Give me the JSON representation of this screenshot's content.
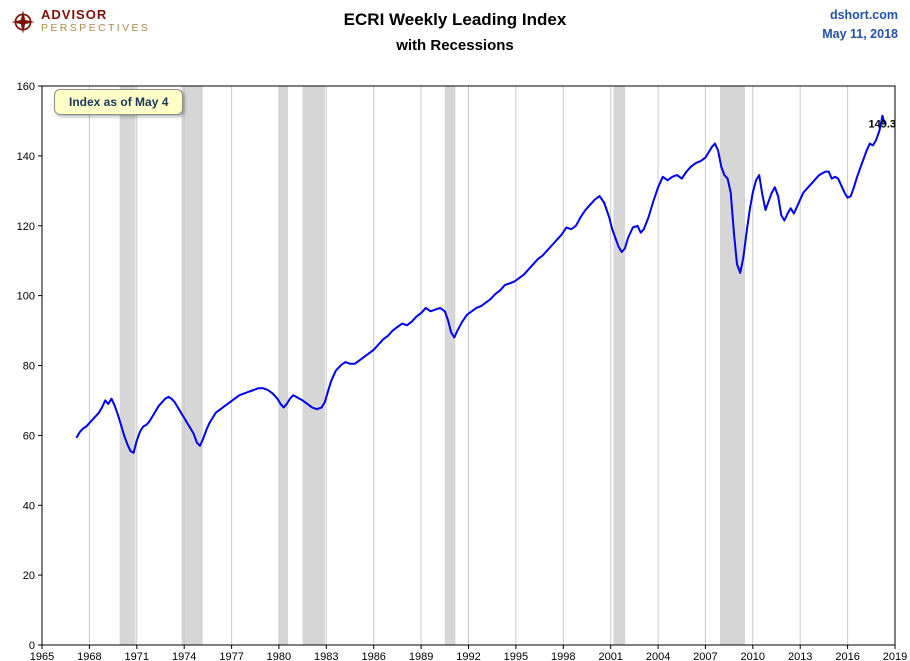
{
  "header": {
    "logo_line1": "ADVISOR",
    "logo_line2": "PERSPECTIVES",
    "title_line1": "ECRI Weekly Leading Index",
    "title_line2": "with Recessions",
    "source": "dshort.com",
    "date": "May 11, 2018"
  },
  "annotation": {
    "label": "Index as of May 4"
  },
  "colors": {
    "line": "#0000EE",
    "recession_band": "#D6D6D6",
    "gridline": "#C9C9C9",
    "plot_border": "#000000",
    "annotation_bg": "#FFFFC8",
    "annotation_text": "#17375E",
    "header_accent": "#2353A4",
    "logo_red": "#7E120B",
    "logo_gold": "#A98B4F",
    "last_value": "#F9A800"
  },
  "chart_data": {
    "type": "line",
    "title": "ECRI Weekly Leading Index with Recessions",
    "xlabel": "",
    "ylabel": "",
    "xlim": [
      1965,
      2019
    ],
    "ylim": [
      0,
      160
    ],
    "x_ticks": [
      1965,
      1968,
      1971,
      1974,
      1977,
      1980,
      1983,
      1986,
      1989,
      1992,
      1995,
      1998,
      2001,
      2004,
      2007,
      2010,
      2013,
      2016,
      2019
    ],
    "y_ticks": [
      0,
      20,
      40,
      60,
      80,
      100,
      120,
      140,
      160
    ],
    "grid": "vertical-only",
    "legend_position": "none",
    "last_value": 149.3,
    "last_value_label": "149.3",
    "recessions": [
      [
        1969.92,
        1970.92
      ],
      [
        1973.83,
        1975.17
      ],
      [
        1980.0,
        1980.58
      ],
      [
        1981.5,
        1982.92
      ],
      [
        1990.5,
        1991.17
      ],
      [
        2001.17,
        2001.92
      ],
      [
        2007.92,
        2009.5
      ]
    ],
    "series": [
      {
        "name": "ECRI Weekly Leading Index",
        "color": "#0000EE",
        "points": [
          [
            1967.2,
            59.5
          ],
          [
            1967.4,
            61
          ],
          [
            1967.6,
            62
          ],
          [
            1967.8,
            62.5
          ],
          [
            1968.0,
            63.5
          ],
          [
            1968.2,
            64.5
          ],
          [
            1968.4,
            65.5
          ],
          [
            1968.6,
            66.5
          ],
          [
            1968.8,
            68
          ],
          [
            1969.0,
            70
          ],
          [
            1969.2,
            69
          ],
          [
            1969.4,
            70.5
          ],
          [
            1969.6,
            68.5
          ],
          [
            1969.8,
            66
          ],
          [
            1970.0,
            63
          ],
          [
            1970.2,
            60
          ],
          [
            1970.4,
            57.5
          ],
          [
            1970.6,
            55.5
          ],
          [
            1970.8,
            55
          ],
          [
            1971.0,
            58.5
          ],
          [
            1971.2,
            61
          ],
          [
            1971.4,
            62.5
          ],
          [
            1971.6,
            63
          ],
          [
            1971.8,
            64
          ],
          [
            1972.0,
            65.5
          ],
          [
            1972.2,
            67
          ],
          [
            1972.4,
            68.5
          ],
          [
            1972.6,
            69.5
          ],
          [
            1972.8,
            70.5
          ],
          [
            1973.0,
            71
          ],
          [
            1973.2,
            70.5
          ],
          [
            1973.4,
            69.5
          ],
          [
            1973.6,
            68
          ],
          [
            1973.8,
            66.5
          ],
          [
            1974.0,
            65
          ],
          [
            1974.2,
            63.5
          ],
          [
            1974.4,
            62
          ],
          [
            1974.6,
            60.5
          ],
          [
            1974.8,
            58
          ],
          [
            1975.0,
            57
          ],
          [
            1975.2,
            59
          ],
          [
            1975.4,
            61.5
          ],
          [
            1975.6,
            63.5
          ],
          [
            1975.8,
            65
          ],
          [
            1976.0,
            66.5
          ],
          [
            1976.3,
            67.5
          ],
          [
            1976.6,
            68.5
          ],
          [
            1976.9,
            69.5
          ],
          [
            1977.2,
            70.5
          ],
          [
            1977.5,
            71.5
          ],
          [
            1977.8,
            72
          ],
          [
            1978.1,
            72.5
          ],
          [
            1978.4,
            73
          ],
          [
            1978.7,
            73.5
          ],
          [
            1979.0,
            73.5
          ],
          [
            1979.3,
            73
          ],
          [
            1979.6,
            72
          ],
          [
            1979.9,
            70.5
          ],
          [
            1980.1,
            69
          ],
          [
            1980.3,
            68
          ],
          [
            1980.5,
            69
          ],
          [
            1980.7,
            70.5
          ],
          [
            1980.9,
            71.5
          ],
          [
            1981.1,
            71
          ],
          [
            1981.3,
            70.5
          ],
          [
            1981.5,
            70
          ],
          [
            1981.8,
            69
          ],
          [
            1982.1,
            68
          ],
          [
            1982.4,
            67.5
          ],
          [
            1982.7,
            68
          ],
          [
            1982.9,
            69.5
          ],
          [
            1983.1,
            72.5
          ],
          [
            1983.3,
            75.5
          ],
          [
            1983.6,
            78.5
          ],
          [
            1983.9,
            80
          ],
          [
            1984.2,
            81
          ],
          [
            1984.5,
            80.5
          ],
          [
            1984.8,
            80.5
          ],
          [
            1985.1,
            81.5
          ],
          [
            1985.4,
            82.5
          ],
          [
            1985.7,
            83.5
          ],
          [
            1986.0,
            84.5
          ],
          [
            1986.3,
            86
          ],
          [
            1986.6,
            87.5
          ],
          [
            1986.9,
            88.5
          ],
          [
            1987.2,
            90
          ],
          [
            1987.5,
            91
          ],
          [
            1987.8,
            92
          ],
          [
            1988.1,
            91.5
          ],
          [
            1988.4,
            92.5
          ],
          [
            1988.7,
            94
          ],
          [
            1989.0,
            95
          ],
          [
            1989.3,
            96.5
          ],
          [
            1989.6,
            95.5
          ],
          [
            1989.9,
            96
          ],
          [
            1990.2,
            96.5
          ],
          [
            1990.5,
            95.5
          ],
          [
            1990.7,
            93
          ],
          [
            1990.9,
            89.5
          ],
          [
            1991.1,
            88
          ],
          [
            1991.3,
            90
          ],
          [
            1991.6,
            92.5
          ],
          [
            1991.9,
            94.5
          ],
          [
            1992.2,
            95.5
          ],
          [
            1992.5,
            96.5
          ],
          [
            1992.8,
            97
          ],
          [
            1993.1,
            98
          ],
          [
            1993.4,
            99
          ],
          [
            1993.7,
            100.5
          ],
          [
            1994.0,
            101.5
          ],
          [
            1994.3,
            103
          ],
          [
            1994.6,
            103.5
          ],
          [
            1994.9,
            104
          ],
          [
            1995.2,
            105
          ],
          [
            1995.5,
            106
          ],
          [
            1995.8,
            107.5
          ],
          [
            1996.1,
            109
          ],
          [
            1996.4,
            110.5
          ],
          [
            1996.7,
            111.5
          ],
          [
            1997.0,
            113
          ],
          [
            1997.3,
            114.5
          ],
          [
            1997.6,
            116
          ],
          [
            1997.9,
            117.5
          ],
          [
            1998.2,
            119.5
          ],
          [
            1998.5,
            119
          ],
          [
            1998.8,
            120
          ],
          [
            1999.1,
            122.5
          ],
          [
            1999.4,
            124.5
          ],
          [
            1999.7,
            126
          ],
          [
            2000.0,
            127.5
          ],
          [
            2000.3,
            128.5
          ],
          [
            2000.6,
            126.5
          ],
          [
            2000.9,
            122.5
          ],
          [
            2001.1,
            119
          ],
          [
            2001.3,
            116.5
          ],
          [
            2001.5,
            114
          ],
          [
            2001.7,
            112.5
          ],
          [
            2001.9,
            113.5
          ],
          [
            2002.1,
            116.5
          ],
          [
            2002.4,
            119.5
          ],
          [
            2002.7,
            120
          ],
          [
            2002.9,
            118
          ],
          [
            2003.1,
            119
          ],
          [
            2003.4,
            122.5
          ],
          [
            2003.7,
            127
          ],
          [
            2004.0,
            131
          ],
          [
            2004.3,
            134
          ],
          [
            2004.6,
            133
          ],
          [
            2004.9,
            134
          ],
          [
            2005.2,
            134.5
          ],
          [
            2005.5,
            133.5
          ],
          [
            2005.8,
            135.5
          ],
          [
            2006.1,
            137
          ],
          [
            2006.4,
            138
          ],
          [
            2006.7,
            138.5
          ],
          [
            2007.0,
            139.5
          ],
          [
            2007.2,
            141
          ],
          [
            2007.4,
            142.5
          ],
          [
            2007.6,
            143.5
          ],
          [
            2007.8,
            141.5
          ],
          [
            2008.0,
            137
          ],
          [
            2008.2,
            134.5
          ],
          [
            2008.4,
            133.5
          ],
          [
            2008.6,
            129.5
          ],
          [
            2008.8,
            118
          ],
          [
            2009.0,
            109
          ],
          [
            2009.2,
            106.5
          ],
          [
            2009.4,
            111
          ],
          [
            2009.6,
            118
          ],
          [
            2009.8,
            124.5
          ],
          [
            2010.0,
            129.5
          ],
          [
            2010.2,
            133
          ],
          [
            2010.4,
            134.5
          ],
          [
            2010.6,
            129
          ],
          [
            2010.8,
            124.5
          ],
          [
            2011.0,
            127
          ],
          [
            2011.2,
            129.5
          ],
          [
            2011.4,
            131
          ],
          [
            2011.6,
            128.5
          ],
          [
            2011.8,
            123
          ],
          [
            2012.0,
            121.5
          ],
          [
            2012.2,
            123.5
          ],
          [
            2012.4,
            125
          ],
          [
            2012.6,
            123.5
          ],
          [
            2012.8,
            125.5
          ],
          [
            2013.0,
            127.5
          ],
          [
            2013.2,
            129.5
          ],
          [
            2013.4,
            130.5
          ],
          [
            2013.6,
            131.5
          ],
          [
            2013.8,
            132.5
          ],
          [
            2014.0,
            133.5
          ],
          [
            2014.2,
            134.5
          ],
          [
            2014.4,
            135
          ],
          [
            2014.6,
            135.5
          ],
          [
            2014.8,
            135.5
          ],
          [
            2015.0,
            133.5
          ],
          [
            2015.2,
            134
          ],
          [
            2015.4,
            133.5
          ],
          [
            2015.6,
            131.5
          ],
          [
            2015.8,
            129.5
          ],
          [
            2016.0,
            128
          ],
          [
            2016.2,
            128.5
          ],
          [
            2016.4,
            131
          ],
          [
            2016.6,
            134
          ],
          [
            2016.8,
            136.5
          ],
          [
            2017.0,
            139
          ],
          [
            2017.2,
            141.5
          ],
          [
            2017.4,
            143.5
          ],
          [
            2017.6,
            143
          ],
          [
            2017.8,
            144.5
          ],
          [
            2018.0,
            147
          ],
          [
            2018.1,
            149
          ],
          [
            2018.2,
            151.5
          ],
          [
            2018.3,
            150
          ],
          [
            2018.35,
            149.3
          ]
        ]
      }
    ]
  }
}
